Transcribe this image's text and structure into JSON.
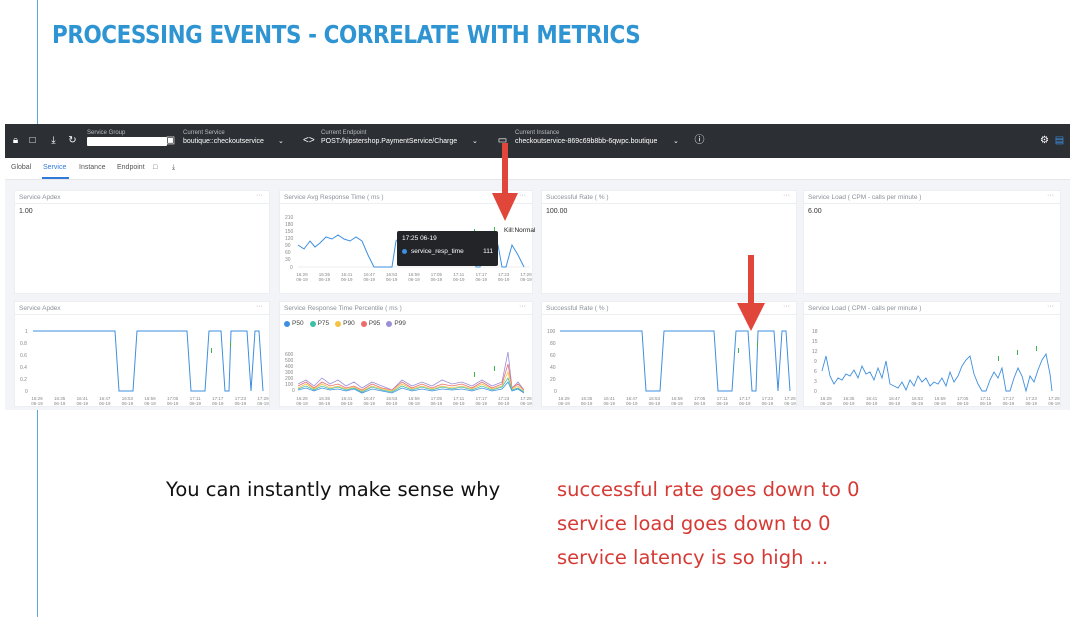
{
  "slide": {
    "title": "PROCESSING EVENTS - CORRELATE WITH METRICS"
  },
  "topbar": {
    "service_group_label": "Service Group",
    "current_service_label": "Current Service",
    "current_service_value": "boutique::checkoutservice",
    "current_endpoint_label": "Current Endpoint",
    "current_endpoint_value": "POST:/hipstershop.PaymentService/Charge",
    "current_instance_label": "Current Instance",
    "current_instance_value": "checkoutservice-869c69b8bb-6qwpc.boutique"
  },
  "tabs": {
    "global": "Global",
    "service": "Service",
    "instance": "Instance",
    "endpoint": "Endpoint"
  },
  "panels": {
    "row1": [
      {
        "title": "Service Apdex",
        "value": "1.00"
      },
      {
        "title": "Service Avg Response Time ( ms )"
      },
      {
        "title": "Successful Rate ( % )",
        "value": "100.00"
      },
      {
        "title": "Service Load ( CPM - calls per minute )",
        "value": "6.00"
      }
    ],
    "row2": [
      {
        "title": "Service Apdex"
      },
      {
        "title": "Service Response Time Percentile ( ms )"
      },
      {
        "title": "Successful Rate ( % )"
      },
      {
        "title": "Service Load ( CPM - calls per minute )"
      }
    ],
    "more": "···"
  },
  "tooltip": {
    "time": "17:25 06-19",
    "series": "service_resp_time",
    "value": "111"
  },
  "event_label": "Kill:Normal",
  "legend": [
    "P50",
    "P75",
    "P90",
    "P95",
    "P99"
  ],
  "colors": {
    "accent": "#2f95d2",
    "line": "#3e8fe0",
    "arrow": "#e0463a",
    "p50": "#3e8fe0",
    "p75": "#3fbfa6",
    "p90": "#f5c242",
    "p95": "#ee6b6b",
    "p99": "#9b8fd8",
    "event": "#3cb54a"
  },
  "x_ticks": [
    "16:29",
    "16:35",
    "16:41",
    "16:47",
    "16:53",
    "16:59",
    "17:05",
    "17:11",
    "17:17",
    "17:23",
    "17:29"
  ],
  "x_date": "06-19",
  "y_ticks": {
    "avg_response": [
      "210",
      "180",
      "150",
      "120",
      "90",
      "60",
      "30",
      "0"
    ],
    "apdex": [
      "1",
      "0.8",
      "0.6",
      "0.4",
      "0.2",
      "0"
    ],
    "percentile": [
      "600",
      "500",
      "400",
      "300",
      "200",
      "100",
      "0"
    ],
    "success": [
      "100",
      "80",
      "60",
      "40",
      "20",
      "0"
    ],
    "load": [
      "18",
      "15",
      "12",
      "9",
      "6",
      "3",
      "0"
    ]
  },
  "caption": {
    "lead": "You can instantly make sense why",
    "line1": "successful rate goes down to 0",
    "line2": "service load goes down to 0",
    "line3": "service latency is so high ..."
  }
}
